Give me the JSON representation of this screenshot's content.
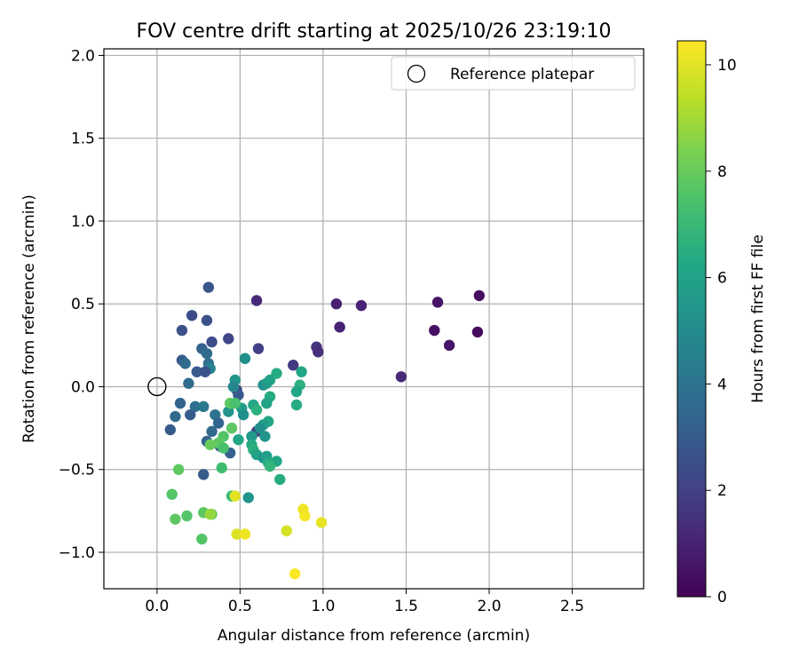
{
  "chart_data": {
    "type": "scatter",
    "title": "FOV centre drift starting at 2025/10/26 23:19:10",
    "xlabel": "Angular distance from reference (arcmin)",
    "ylabel": "Rotation from reference (arcmin)",
    "xlim": [
      -0.32,
      2.93
    ],
    "ylim": [
      -1.22,
      2.04
    ],
    "xticks": [
      0.0,
      0.5,
      1.0,
      1.5,
      2.0,
      2.5
    ],
    "xtick_labels": [
      "0.0",
      "0.5",
      "1.0",
      "1.5",
      "2.0",
      "2.5"
    ],
    "yticks": [
      -1.0,
      -0.5,
      0.0,
      0.5,
      1.0,
      1.5,
      2.0
    ],
    "ytick_labels": [
      "−1.0",
      "−0.5",
      "0.0",
      "0.5",
      "1.0",
      "1.5",
      "2.0"
    ],
    "grid": true,
    "legend": {
      "location": "top-right",
      "entries": [
        {
          "label": "Reference platepar",
          "marker": "open-circle"
        }
      ]
    },
    "reference_point": {
      "x": 0.0,
      "y": 0.0
    },
    "colorbar": {
      "label": "Hours from first FF file",
      "range": [
        0,
        10.45
      ],
      "ticks": [
        0,
        2,
        4,
        6,
        8,
        10
      ],
      "tick_labels": [
        "0",
        "2",
        "4",
        "6",
        "8",
        "10"
      ],
      "colormap": "viridis"
    },
    "points": [
      {
        "x": 0.6,
        "y": 0.52,
        "h": 1.2
      },
      {
        "x": 1.08,
        "y": 0.5,
        "h": 0.9
      },
      {
        "x": 1.23,
        "y": 0.49,
        "h": 1.0
      },
      {
        "x": 1.69,
        "y": 0.51,
        "h": 0.6
      },
      {
        "x": 1.94,
        "y": 0.55,
        "h": 0.4
      },
      {
        "x": 1.1,
        "y": 0.36,
        "h": 1.0
      },
      {
        "x": 1.67,
        "y": 0.34,
        "h": 0.5
      },
      {
        "x": 1.93,
        "y": 0.33,
        "h": 0.3
      },
      {
        "x": 1.76,
        "y": 0.25,
        "h": 0.6
      },
      {
        "x": 0.96,
        "y": 0.24,
        "h": 1.6
      },
      {
        "x": 0.97,
        "y": 0.21,
        "h": 1.4
      },
      {
        "x": 1.47,
        "y": 0.06,
        "h": 1.2
      },
      {
        "x": 0.82,
        "y": 0.13,
        "h": 1.8
      },
      {
        "x": 0.61,
        "y": 0.23,
        "h": 2.0
      },
      {
        "x": 0.43,
        "y": 0.29,
        "h": 2.2
      },
      {
        "x": 0.31,
        "y": 0.6,
        "h": 2.8
      },
      {
        "x": 0.21,
        "y": 0.43,
        "h": 2.4
      },
      {
        "x": 0.3,
        "y": 0.4,
        "h": 2.6
      },
      {
        "x": 0.15,
        "y": 0.34,
        "h": 2.6
      },
      {
        "x": 0.33,
        "y": 0.27,
        "h": 2.4
      },
      {
        "x": 0.27,
        "y": 0.23,
        "h": 3.2
      },
      {
        "x": 0.3,
        "y": 0.2,
        "h": 3.6
      },
      {
        "x": 0.15,
        "y": 0.16,
        "h": 3.0
      },
      {
        "x": 0.17,
        "y": 0.14,
        "h": 3.6
      },
      {
        "x": 0.31,
        "y": 0.14,
        "h": 3.8
      },
      {
        "x": 0.32,
        "y": 0.11,
        "h": 4.6
      },
      {
        "x": 0.24,
        "y": 0.09,
        "h": 3.0
      },
      {
        "x": 0.29,
        "y": 0.09,
        "h": 2.6
      },
      {
        "x": 0.19,
        "y": 0.02,
        "h": 3.6
      },
      {
        "x": 0.48,
        "y": -0.02,
        "h": 2.4
      },
      {
        "x": 0.49,
        "y": -0.05,
        "h": 2.9
      },
      {
        "x": 0.14,
        "y": -0.1,
        "h": 3.4
      },
      {
        "x": 0.23,
        "y": -0.12,
        "h": 3.8
      },
      {
        "x": 0.28,
        "y": -0.12,
        "h": 4.2
      },
      {
        "x": 0.2,
        "y": -0.17,
        "h": 3.0
      },
      {
        "x": 0.11,
        "y": -0.18,
        "h": 3.6
      },
      {
        "x": 0.35,
        "y": -0.17,
        "h": 4.0
      },
      {
        "x": 0.37,
        "y": -0.22,
        "h": 3.4
      },
      {
        "x": 0.08,
        "y": -0.26,
        "h": 3.0
      },
      {
        "x": 0.33,
        "y": -0.27,
        "h": 3.6
      },
      {
        "x": 0.6,
        "y": -0.27,
        "h": 2.0
      },
      {
        "x": 0.3,
        "y": -0.33,
        "h": 3.2
      },
      {
        "x": 0.38,
        "y": -0.36,
        "h": 3.0
      },
      {
        "x": 0.44,
        "y": -0.4,
        "h": 3.2
      },
      {
        "x": 0.28,
        "y": -0.53,
        "h": 3.0
      },
      {
        "x": 0.53,
        "y": 0.17,
        "h": 5.2
      },
      {
        "x": 0.47,
        "y": 0.04,
        "h": 5.4
      },
      {
        "x": 0.46,
        "y": 0.0,
        "h": 4.8
      },
      {
        "x": 0.64,
        "y": 0.01,
        "h": 5.2
      },
      {
        "x": 0.66,
        "y": 0.02,
        "h": 5.6
      },
      {
        "x": 0.68,
        "y": 0.04,
        "h": 6.0
      },
      {
        "x": 0.72,
        "y": 0.08,
        "h": 6.4
      },
      {
        "x": 0.87,
        "y": 0.09,
        "h": 6.2
      },
      {
        "x": 0.86,
        "y": 0.01,
        "h": 6.6
      },
      {
        "x": 0.84,
        "y": -0.03,
        "h": 6.2
      },
      {
        "x": 0.68,
        "y": -0.06,
        "h": 6.4
      },
      {
        "x": 0.66,
        "y": -0.1,
        "h": 6.0
      },
      {
        "x": 0.58,
        "y": -0.11,
        "h": 6.2
      },
      {
        "x": 0.84,
        "y": -0.11,
        "h": 6.4
      },
      {
        "x": 0.51,
        "y": -0.13,
        "h": 5.8
      },
      {
        "x": 0.6,
        "y": -0.14,
        "h": 6.6
      },
      {
        "x": 0.43,
        "y": -0.15,
        "h": 5.4
      },
      {
        "x": 0.52,
        "y": -0.17,
        "h": 5.2
      },
      {
        "x": 0.67,
        "y": -0.21,
        "h": 6.2
      },
      {
        "x": 0.64,
        "y": -0.23,
        "h": 5.8
      },
      {
        "x": 0.62,
        "y": -0.25,
        "h": 5.2
      },
      {
        "x": 0.57,
        "y": -0.3,
        "h": 5.6
      },
      {
        "x": 0.65,
        "y": -0.3,
        "h": 5.4
      },
      {
        "x": 0.49,
        "y": -0.32,
        "h": 6.2
      },
      {
        "x": 0.57,
        "y": -0.35,
        "h": 6.4
      },
      {
        "x": 0.58,
        "y": -0.38,
        "h": 6.6
      },
      {
        "x": 0.6,
        "y": -0.41,
        "h": 6.0
      },
      {
        "x": 0.64,
        "y": -0.43,
        "h": 5.4
      },
      {
        "x": 0.66,
        "y": -0.42,
        "h": 5.8
      },
      {
        "x": 0.67,
        "y": -0.46,
        "h": 6.4
      },
      {
        "x": 0.72,
        "y": -0.45,
        "h": 6.2
      },
      {
        "x": 0.68,
        "y": -0.48,
        "h": 6.8
      },
      {
        "x": 0.74,
        "y": -0.56,
        "h": 6.4
      },
      {
        "x": 0.55,
        "y": -0.67,
        "h": 5.4
      },
      {
        "x": 0.44,
        "y": -0.1,
        "h": 7.8
      },
      {
        "x": 0.47,
        "y": -0.1,
        "h": 7.4
      },
      {
        "x": 0.45,
        "y": -0.25,
        "h": 7.8
      },
      {
        "x": 0.4,
        "y": -0.3,
        "h": 7.6
      },
      {
        "x": 0.37,
        "y": -0.34,
        "h": 7.8
      },
      {
        "x": 0.32,
        "y": -0.35,
        "h": 8.0
      },
      {
        "x": 0.4,
        "y": -0.37,
        "h": 7.4
      },
      {
        "x": 0.39,
        "y": -0.49,
        "h": 7.2
      },
      {
        "x": 0.13,
        "y": -0.5,
        "h": 7.8
      },
      {
        "x": 0.45,
        "y": -0.66,
        "h": 7.0
      },
      {
        "x": 0.09,
        "y": -0.65,
        "h": 7.6
      },
      {
        "x": 0.28,
        "y": -0.76,
        "h": 7.8
      },
      {
        "x": 0.33,
        "y": -0.77,
        "h": 8.0
      },
      {
        "x": 0.18,
        "y": -0.78,
        "h": 7.6
      },
      {
        "x": 0.11,
        "y": -0.8,
        "h": 7.8
      },
      {
        "x": 0.27,
        "y": -0.92,
        "h": 7.6
      },
      {
        "x": 0.32,
        "y": -0.77,
        "h": 8.8
      },
      {
        "x": 0.47,
        "y": -0.66,
        "h": 10.0
      },
      {
        "x": 0.88,
        "y": -0.74,
        "h": 10.2
      },
      {
        "x": 0.89,
        "y": -0.78,
        "h": 10.3
      },
      {
        "x": 0.99,
        "y": -0.82,
        "h": 10.1
      },
      {
        "x": 0.78,
        "y": -0.87,
        "h": 9.8
      },
      {
        "x": 0.48,
        "y": -0.89,
        "h": 9.9
      },
      {
        "x": 0.53,
        "y": -0.89,
        "h": 10.2
      },
      {
        "x": 0.83,
        "y": -1.13,
        "h": 10.4
      }
    ]
  }
}
